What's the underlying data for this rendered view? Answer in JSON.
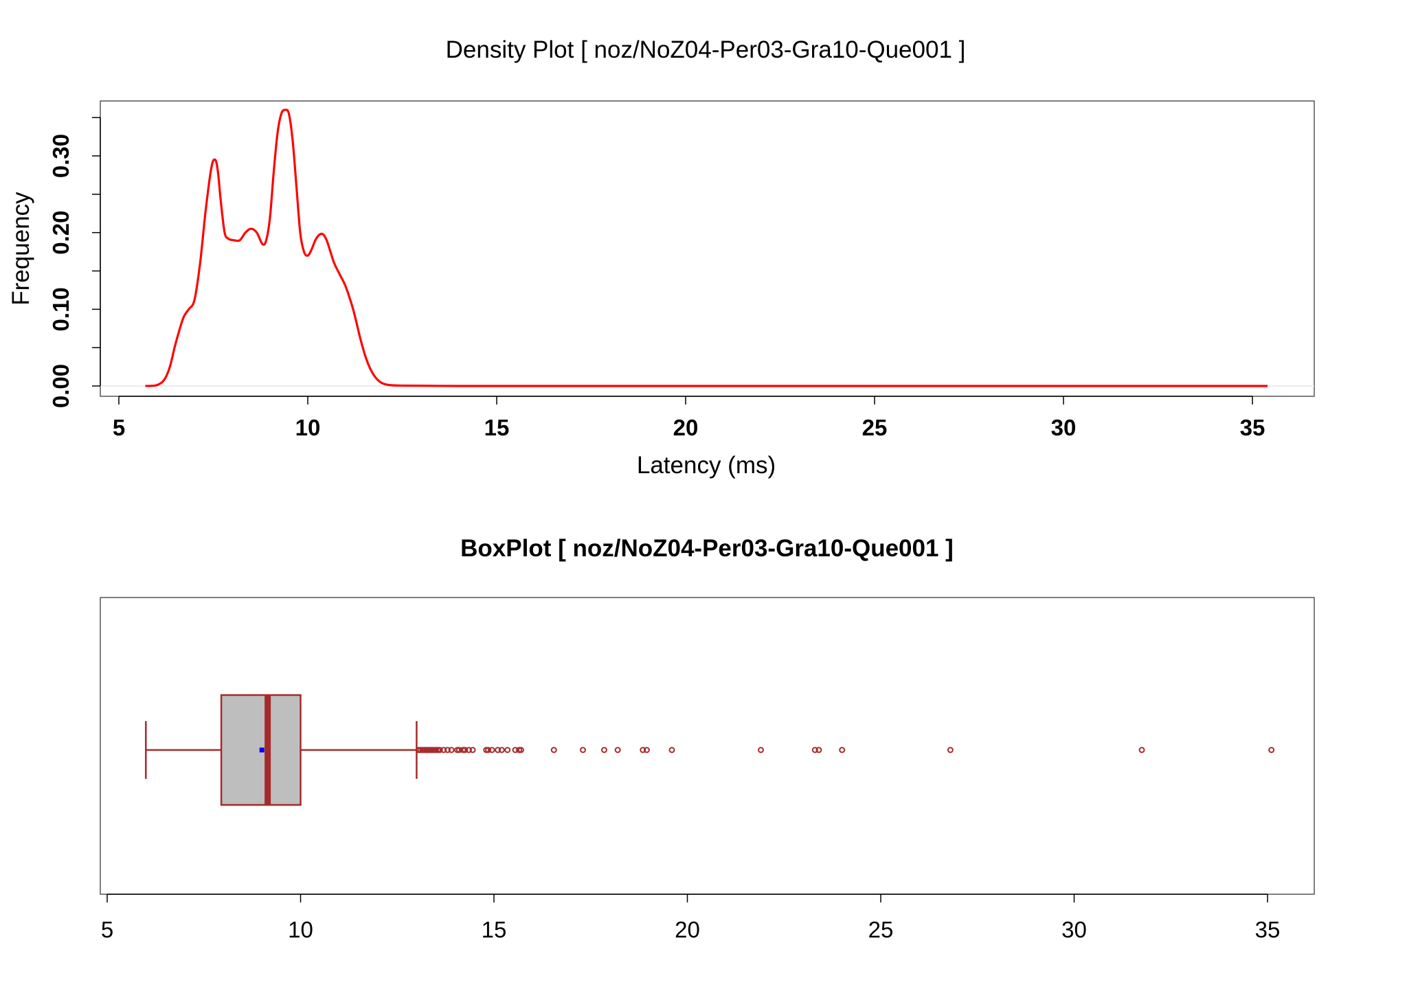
{
  "chart_data": [
    {
      "type": "line",
      "title": "Density Plot [ noz/NoZ04-Per03-Gra10-Que001 ]",
      "xlabel": "Latency (ms)",
      "ylabel": "Frequency",
      "xlim": [
        5,
        36
      ],
      "ylim": [
        -0.01,
        0.375
      ],
      "x_ticks": [
        5,
        10,
        15,
        20,
        25,
        30,
        35
      ],
      "y_ticks": [
        0.0,
        0.1,
        0.2,
        0.3
      ],
      "y_tick_labels": [
        "0.00",
        "0.10",
        "0.20",
        "0.30"
      ],
      "x_tick_labels": [
        "5",
        "10",
        "15",
        "20",
        "25",
        "30",
        "35"
      ],
      "grid": false,
      "line_color": "#ff0000",
      "x": [
        5.7,
        6.0,
        6.2,
        6.35,
        6.5,
        6.7,
        6.85,
        7.0,
        7.15,
        7.3,
        7.45,
        7.55,
        7.62,
        7.7,
        7.8,
        7.9,
        8.05,
        8.2,
        8.35,
        8.5,
        8.65,
        8.8,
        8.9,
        9.0,
        9.1,
        9.2,
        9.3,
        9.4,
        9.5,
        9.6,
        9.7,
        9.8,
        9.9,
        10.0,
        10.1,
        10.2,
        10.3,
        10.4,
        10.5,
        10.6,
        10.7,
        10.85,
        11.0,
        11.2,
        11.4,
        11.55,
        11.7,
        11.85,
        12.0,
        12.2,
        12.5,
        13.0,
        14.0,
        16.0,
        20.0,
        25.0,
        30.0,
        35.4
      ],
      "y": [
        0.0,
        0.001,
        0.008,
        0.025,
        0.055,
        0.088,
        0.1,
        0.112,
        0.16,
        0.23,
        0.285,
        0.295,
        0.28,
        0.24,
        0.2,
        0.192,
        0.19,
        0.19,
        0.2,
        0.205,
        0.2,
        0.185,
        0.19,
        0.22,
        0.28,
        0.33,
        0.355,
        0.36,
        0.355,
        0.32,
        0.26,
        0.2,
        0.175,
        0.17,
        0.178,
        0.19,
        0.197,
        0.198,
        0.19,
        0.175,
        0.16,
        0.145,
        0.13,
        0.1,
        0.06,
        0.035,
        0.018,
        0.008,
        0.003,
        0.001,
        0.0005,
        0.0003,
        0.0,
        0.0,
        0.0,
        0.0,
        0.0,
        0.0
      ]
    },
    {
      "type": "box",
      "title": "BoxPlot [ noz/NoZ04-Per03-Gra10-Que001 ]",
      "xlim": [
        5,
        36
      ],
      "x_ticks": [
        5,
        10,
        15,
        20,
        25,
        30,
        35
      ],
      "x_tick_labels": [
        "5",
        "10",
        "15",
        "20",
        "25",
        "30",
        "35"
      ],
      "whisker_low": 6.0,
      "q1": 7.95,
      "median": 9.15,
      "q3": 10.0,
      "whisker_high": 13.0,
      "mean": 9.0,
      "box_fill": "#bebebe",
      "box_border": "#a52a2a",
      "mean_color": "#0000ff",
      "outliers": [
        13.05,
        13.1,
        13.15,
        13.2,
        13.25,
        13.3,
        13.35,
        13.4,
        13.45,
        13.5,
        13.55,
        13.6,
        13.7,
        13.8,
        13.9,
        14.05,
        14.1,
        14.2,
        14.25,
        14.35,
        14.45,
        14.8,
        14.85,
        14.95,
        15.1,
        15.2,
        15.35,
        15.55,
        15.65,
        15.7,
        16.55,
        17.3,
        17.85,
        18.2,
        18.85,
        18.95,
        19.6,
        21.9,
        23.3,
        23.4,
        24.0,
        26.8,
        31.75,
        35.1
      ]
    }
  ]
}
